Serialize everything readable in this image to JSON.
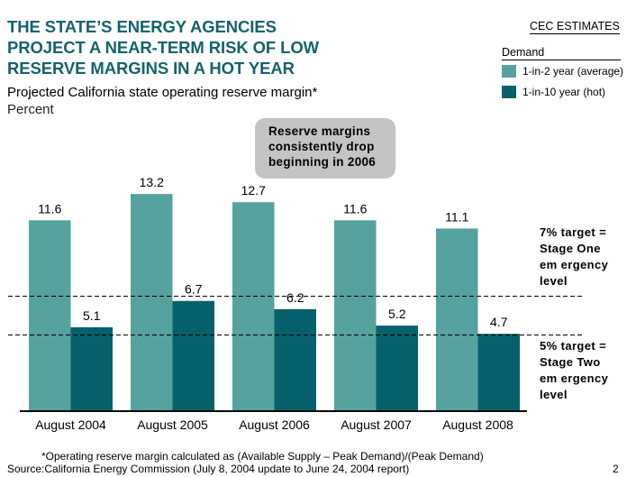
{
  "header": {
    "title_lines": [
      "THE STATE’S ENERGY AGENCIES",
      "PROJECT A NEAR-TERM RISK OF LOW",
      "RESERVE MARGINS IN A HOT YEAR"
    ],
    "subtitle": "Projected California state operating reserve margin*",
    "unit": "Percent"
  },
  "legend": {
    "heading": "CEC ESTIMATES",
    "group_label": "Demand",
    "items": [
      {
        "label": "1-in-2 year (average)",
        "color": "#56a29f"
      },
      {
        "label": "1-in-10 year (hot)",
        "color": "#06616c"
      }
    ]
  },
  "callout": {
    "lines": [
      "Reserve margins",
      "consistently drop",
      "beginning in 2006"
    ]
  },
  "targets": {
    "stage_one": {
      "value": 7,
      "lines": [
        "7% target =",
        "Stage One",
        "em ergency",
        "level"
      ]
    },
    "stage_two": {
      "value": 5,
      "lines": [
        "5% target =",
        "Stage Two",
        "em ergency",
        "level"
      ]
    }
  },
  "chart_data": {
    "type": "bar",
    "title": "Projected California state operating reserve margin*",
    "ylabel": "Percent",
    "xlabel": "",
    "categories": [
      "August 2004",
      "August 2005",
      "August 2006",
      "August 2007",
      "August 2008"
    ],
    "series": [
      {
        "name": "1-in-2 year (average)",
        "color": "#56a29f",
        "values": [
          11.6,
          13.2,
          12.7,
          11.6,
          11.1
        ]
      },
      {
        "name": "1-in-10 year (hot)",
        "color": "#06616c",
        "values": [
          5.1,
          6.7,
          6.2,
          5.2,
          4.7
        ]
      }
    ],
    "reference_lines": [
      {
        "value": 7,
        "label": "7% target = Stage One emergency level",
        "style": "dashed"
      },
      {
        "value": 5,
        "label": "5% target = Stage Two emergency level",
        "style": "dashed"
      }
    ],
    "ylim": [
      0,
      14
    ],
    "grid": false,
    "legend_position": "top-right"
  },
  "footer": {
    "footnote": "*Operating reserve margin calculated as (Available Supply – Peak Demand)/(Peak Demand)",
    "source": "Source:California Energy Commission (July 8, 2004 update to June 24, 2004 report)",
    "page_number": "2"
  }
}
